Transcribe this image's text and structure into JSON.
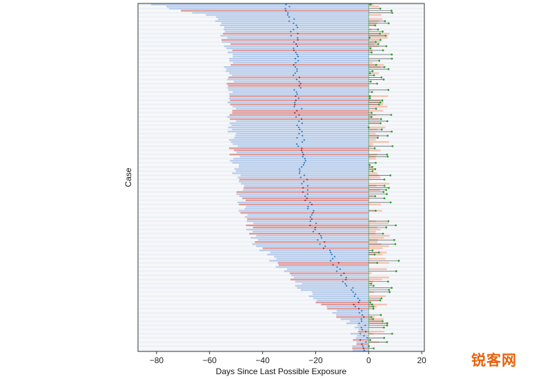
{
  "chart_data": {
    "type": "bar",
    "title": "",
    "xlabel": "Days Since Last Possible Exposure",
    "ylabel": "Case",
    "xlim": [
      -87,
      21
    ],
    "x_ticks": [
      "−80",
      "−60",
      "−40",
      "−20",
      "0",
      "20"
    ],
    "x_tick_values": [
      -80,
      -60,
      -40,
      -20,
      0,
      20
    ],
    "grid": false,
    "legend": "none",
    "n_cases": 167,
    "encoding": {
      "exposure_window_start": "left end of horizontal bar (days before last possible exposure)",
      "exposure_window_end": 0,
      "symptom_onset": "dot marker on each row",
      "post_exposure_interval_end": "right end of short orange bar"
    },
    "exposure_start_by_case_profile": [
      {
        "case_from": 1,
        "case_to": 6,
        "start_days": -82
      },
      {
        "case_from": 7,
        "case_to": 20,
        "start_days": -57
      },
      {
        "case_from": 21,
        "case_to": 50,
        "start_days": -53
      },
      {
        "case_from": 51,
        "case_to": 80,
        "start_days": -52
      },
      {
        "case_from": 81,
        "case_to": 100,
        "start_days": -50
      },
      {
        "case_from": 101,
        "case_to": 115,
        "start_days": -47
      },
      {
        "case_from": 116,
        "case_to": 125,
        "start_days": -42
      },
      {
        "case_from": 126,
        "case_to": 135,
        "start_days": -34
      },
      {
        "case_from": 136,
        "case_to": 145,
        "start_days": -26
      },
      {
        "case_from": 146,
        "case_to": 155,
        "start_days": -16
      },
      {
        "case_from": 156,
        "case_to": 167,
        "start_days": -5
      }
    ],
    "onset_days_by_case_profile": [
      {
        "case_from": 1,
        "case_to": 10,
        "onset_days": -31
      },
      {
        "case_from": 11,
        "case_to": 40,
        "onset_days": -28
      },
      {
        "case_from": 41,
        "case_to": 80,
        "onset_days": -27
      },
      {
        "case_from": 81,
        "case_to": 110,
        "onset_days": -25
      },
      {
        "case_from": 111,
        "case_to": 125,
        "onset_days": -20
      },
      {
        "case_from": 126,
        "case_to": 140,
        "onset_days": -12
      },
      {
        "case_from": 141,
        "case_to": 155,
        "onset_days": -5
      },
      {
        "case_from": 156,
        "case_to": 167,
        "onset_days": -2
      }
    ],
    "series": [
      {
        "role": "exposure window",
        "color": "#aec6e8"
      },
      {
        "role": "highlighted exposure window",
        "color": "#d98a8a"
      },
      {
        "role": "interval after exposure",
        "color": "#f4b39a"
      },
      {
        "role": "onset marker",
        "color": "#2e7fbf"
      },
      {
        "role": "highlighted onset marker",
        "color": "#b0282e"
      },
      {
        "role": "outcome marker",
        "color": "#2ca02c"
      }
    ]
  },
  "watermark": {
    "text": "锐客网"
  }
}
